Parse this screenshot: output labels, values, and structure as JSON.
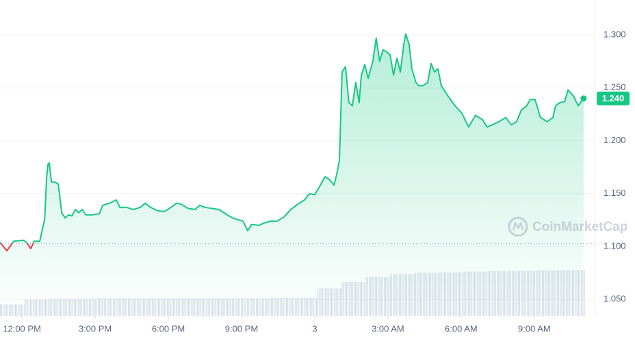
{
  "chart_data": {
    "type": "line",
    "x": [
      -0.9,
      -0.62,
      -0.34,
      0.08,
      0.22,
      0.36,
      0.5,
      0.73,
      0.93,
      1.01,
      1.07,
      1.12,
      1.21,
      1.35,
      1.49,
      1.63,
      1.77,
      1.91,
      2.05,
      2.19,
      2.33,
      2.47,
      2.61,
      2.89,
      3.17,
      3.31,
      3.59,
      3.87,
      4.01,
      4.29,
      4.57,
      4.85,
      5.05,
      5.27,
      5.55,
      5.83,
      6.11,
      6.34,
      6.53,
      6.81,
      7.09,
      7.29,
      7.51,
      7.79,
      8.07,
      8.35,
      8.63,
      9.06,
      9.25,
      9.42,
      9.7,
      9.9,
      10.18,
      10.46,
      10.74,
      11.02,
      11.3,
      11.58,
      11.78,
      12,
      12.23,
      12.42,
      12.62,
      12.79,
      12.9,
      13.01,
      13.12,
      13.26,
      13.4,
      13.54,
      13.68,
      13.82,
      13.91,
      14.05,
      14.19,
      14.38,
      14.52,
      14.66,
      14.8,
      14.95,
      15.09,
      15.23,
      15.37,
      15.51,
      15.65,
      15.73,
      15.87,
      15.98,
      16.15,
      16.26,
      16.43,
      16.63,
      16.77,
      16.91,
      17.05,
      17.19,
      17.47,
      17.75,
      18.03,
      18.31,
      18.59,
      18.87,
      19.07,
      19.27,
      19.55,
      19.83,
      20.06,
      20.27,
      20.47,
      20.69,
      20.83,
      21.03,
      21.25,
      21.53,
      21.76,
      21.87,
      22.04,
      22.24,
      22.38,
      22.61,
      22.8,
      23.02
    ],
    "series": [
      {
        "color": "#16c784",
        "down_color": "#ea3943",
        "values": [
          1.104,
          1.096,
          1.105,
          1.106,
          1.103,
          1.098,
          1.105,
          1.105,
          1.126,
          1.165,
          1.178,
          1.179,
          1.161,
          1.161,
          1.159,
          1.132,
          1.127,
          1.13,
          1.129,
          1.135,
          1.132,
          1.135,
          1.13,
          1.13,
          1.131,
          1.139,
          1.141,
          1.144,
          1.137,
          1.137,
          1.135,
          1.137,
          1.141,
          1.137,
          1.134,
          1.133,
          1.137,
          1.141,
          1.14,
          1.136,
          1.135,
          1.139,
          1.137,
          1.136,
          1.135,
          1.131,
          1.127,
          1.124,
          1.115,
          1.121,
          1.12,
          1.122,
          1.124,
          1.124,
          1.128,
          1.135,
          1.14,
          1.144,
          1.15,
          1.149,
          1.158,
          1.166,
          1.163,
          1.158,
          1.168,
          1.181,
          1.265,
          1.27,
          1.236,
          1.233,
          1.255,
          1.236,
          1.262,
          1.272,
          1.259,
          1.275,
          1.297,
          1.275,
          1.286,
          1.284,
          1.281,
          1.262,
          1.278,
          1.265,
          1.291,
          1.301,
          1.291,
          1.268,
          1.255,
          1.252,
          1.252,
          1.255,
          1.273,
          1.265,
          1.268,
          1.252,
          1.242,
          1.233,
          1.226,
          1.213,
          1.224,
          1.22,
          1.213,
          1.215,
          1.218,
          1.222,
          1.215,
          1.218,
          1.229,
          1.233,
          1.239,
          1.239,
          1.222,
          1.218,
          1.222,
          1.233,
          1.236,
          1.237,
          1.248,
          1.242,
          1.233,
          1.24
        ]
      }
    ],
    "baseline": 1.103,
    "current_price": {
      "value": 1.24,
      "label": "1.240"
    },
    "volume": {
      "bins": [
        -0.9,
        0.1,
        1.1,
        2.1,
        3.1,
        4.1,
        5.1,
        6.1,
        7.1,
        8.1,
        9.1,
        10.1,
        11.1,
        12.1,
        13.1,
        14.1,
        15.1,
        16.1,
        17.1,
        18.1,
        19.1,
        20.1,
        21.1,
        22.1,
        23.1
      ],
      "values": [
        26,
        36,
        38,
        38,
        39,
        39,
        39,
        39,
        39,
        39,
        39,
        40,
        40,
        60,
        74,
        85,
        91,
        94,
        95,
        96,
        97,
        98,
        99,
        100
      ],
      "color": "#cfd6e4"
    },
    "xlim": [
      -0.9,
      23.5
    ],
    "ylim": [
      1.034,
      1.333
    ],
    "xticks": [
      {
        "value": 0,
        "label": "12:00 PM"
      },
      {
        "value": 3,
        "label": "3:00 PM"
      },
      {
        "value": 6,
        "label": "6:00 PM"
      },
      {
        "value": 9,
        "label": "9:00 PM"
      },
      {
        "value": 12,
        "label": "3"
      },
      {
        "value": 15,
        "label": "3:00 AM"
      },
      {
        "value": 18,
        "label": "6:00 AM"
      },
      {
        "value": 21,
        "label": "9:00 AM"
      }
    ],
    "yticks": [
      {
        "value": 1.05,
        "label": "1.050"
      },
      {
        "value": 1.1,
        "label": "1.100"
      },
      {
        "value": 1.15,
        "label": "1.150"
      },
      {
        "value": 1.2,
        "label": "1.200"
      },
      {
        "value": 1.25,
        "label": "1.250"
      },
      {
        "value": 1.3,
        "label": "1.300"
      }
    ],
    "grid": true,
    "watermark": "CoinMarketCap"
  }
}
